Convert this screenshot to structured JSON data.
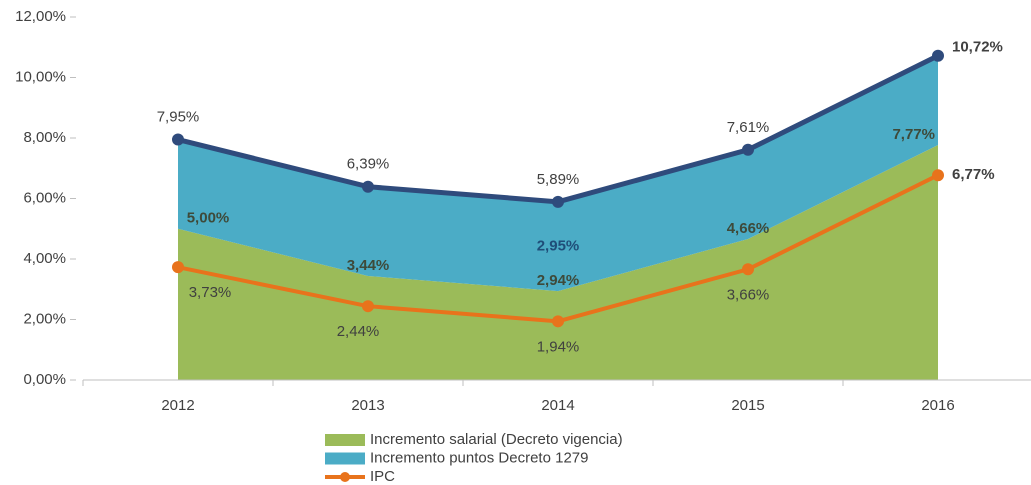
{
  "chart_data": {
    "type": "stacked_area_line",
    "categories": [
      "2012",
      "2013",
      "2014",
      "2015",
      "2016"
    ],
    "ylim": [
      0,
      12
    ],
    "yticks": [
      {
        "value": 0,
        "label": "0,00%"
      },
      {
        "value": 2,
        "label": "2,00%"
      },
      {
        "value": 4,
        "label": "4,00%"
      },
      {
        "value": 6,
        "label": "6,00%"
      },
      {
        "value": 8,
        "label": "8,00%"
      },
      {
        "value": 10,
        "label": "10,00%"
      },
      {
        "value": 12,
        "label": "12,00%"
      }
    ],
    "series": [
      {
        "name": "Incremento salarial (Decreto vigencia)",
        "color": "#9bbb59",
        "kind": "area",
        "values": [
          5.0,
          3.44,
          2.94,
          4.66,
          7.77
        ],
        "value_labels": [
          "5,00%",
          "3,44%",
          "2,94%",
          "4,66%",
          "7,77%"
        ]
      },
      {
        "name": "Incremento puntos Decreto 1279",
        "color": "#4bacc6",
        "kind": "area",
        "values": [
          2.95,
          2.95,
          2.95,
          2.95,
          2.95
        ],
        "value_labels": [
          null,
          null,
          "2,95%",
          null,
          null
        ]
      },
      {
        "name": "IPC",
        "color": "#e8731c",
        "kind": "line",
        "values": [
          3.73,
          2.44,
          1.94,
          3.66,
          6.77
        ],
        "value_labels": [
          "3,73%",
          "2,44%",
          "1,94%",
          "3,66%",
          "6,77%"
        ]
      }
    ],
    "total_line": {
      "color": "#2f4b7c",
      "values": [
        7.95,
        6.39,
        5.89,
        7.61,
        10.72
      ],
      "value_labels": [
        "7,95%",
        "6,39%",
        "5,89%",
        "7,61%",
        "10,72%"
      ]
    }
  }
}
